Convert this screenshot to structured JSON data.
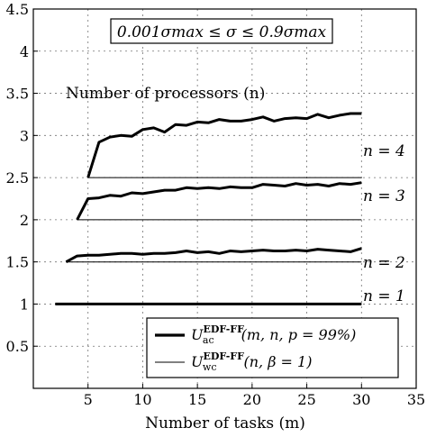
{
  "chart_data": {
    "type": "line",
    "title": "",
    "xlabel": "Number of tasks (m)",
    "ylabel": "",
    "xlim": [
      0,
      35
    ],
    "ylim": [
      0,
      4.5
    ],
    "xticks": [
      5,
      10,
      15,
      20,
      25,
      30,
      35
    ],
    "yticks": [
      0.5,
      1,
      1.5,
      2,
      2.5,
      3,
      3.5,
      4,
      4.5
    ],
    "grid": true,
    "condition_box": "0.001σmax ≤ σ ≤ 0.9σmax",
    "annotation": "Number of processors (n)",
    "series_labels": [
      "n = 4",
      "n = 3",
      "n = 2",
      "n = 1"
    ],
    "legend": {
      "placement": "bottom-right",
      "entries": [
        {
          "style": "thick",
          "main": "U",
          "sup": "EDF-FF",
          "sub": "ac",
          "args": "(m, n, p = 99%)"
        },
        {
          "style": "thin",
          "main": "U",
          "sup": "EDF-FF",
          "sub": "wc",
          "args": "(n, β = 1)"
        }
      ]
    },
    "series": [
      {
        "group": "n=4",
        "kind": "ac",
        "x": [
          5,
          6,
          7,
          8,
          9,
          10,
          11,
          12,
          13,
          14,
          15,
          16,
          17,
          18,
          19,
          20,
          21,
          22,
          23,
          24,
          25,
          26,
          27,
          28,
          29,
          30
        ],
        "y": [
          2.5,
          2.92,
          2.98,
          3.0,
          2.99,
          3.07,
          3.09,
          3.04,
          3.13,
          3.12,
          3.16,
          3.15,
          3.19,
          3.17,
          3.17,
          3.19,
          3.22,
          3.17,
          3.2,
          3.21,
          3.2,
          3.25,
          3.21,
          3.24,
          3.26,
          3.26
        ]
      },
      {
        "group": "n=4",
        "kind": "wc",
        "x": [
          5,
          30
        ],
        "y": [
          2.5,
          2.5
        ]
      },
      {
        "group": "n=3",
        "kind": "ac",
        "x": [
          4,
          5,
          6,
          7,
          8,
          9,
          10,
          11,
          12,
          13,
          14,
          15,
          16,
          17,
          18,
          19,
          20,
          21,
          22,
          23,
          24,
          25,
          26,
          27,
          28,
          29,
          30
        ],
        "y": [
          2.0,
          2.25,
          2.26,
          2.29,
          2.28,
          2.32,
          2.31,
          2.33,
          2.35,
          2.35,
          2.38,
          2.37,
          2.38,
          2.37,
          2.39,
          2.38,
          2.38,
          2.42,
          2.41,
          2.4,
          2.43,
          2.41,
          2.42,
          2.4,
          2.43,
          2.42,
          2.44
        ]
      },
      {
        "group": "n=3",
        "kind": "wc",
        "x": [
          4,
          30
        ],
        "y": [
          2.0,
          2.0
        ]
      },
      {
        "group": "n=2",
        "kind": "ac",
        "x": [
          3,
          4,
          5,
          6,
          7,
          8,
          9,
          10,
          11,
          12,
          13,
          14,
          15,
          16,
          17,
          18,
          19,
          20,
          21,
          22,
          23,
          24,
          25,
          26,
          27,
          28,
          29,
          30
        ],
        "y": [
          1.5,
          1.57,
          1.58,
          1.58,
          1.59,
          1.6,
          1.6,
          1.59,
          1.6,
          1.6,
          1.61,
          1.63,
          1.61,
          1.62,
          1.6,
          1.63,
          1.62,
          1.63,
          1.64,
          1.63,
          1.63,
          1.64,
          1.63,
          1.65,
          1.64,
          1.63,
          1.62,
          1.66
        ]
      },
      {
        "group": "n=2",
        "kind": "wc",
        "x": [
          3,
          30
        ],
        "y": [
          1.5,
          1.5
        ]
      },
      {
        "group": "n=1",
        "kind": "ac",
        "x": [
          2,
          30
        ],
        "y": [
          1.0,
          1.0
        ]
      },
      {
        "group": "n=1",
        "kind": "wc",
        "x": [
          2,
          30
        ],
        "y": [
          1.0,
          1.0
        ]
      }
    ]
  }
}
